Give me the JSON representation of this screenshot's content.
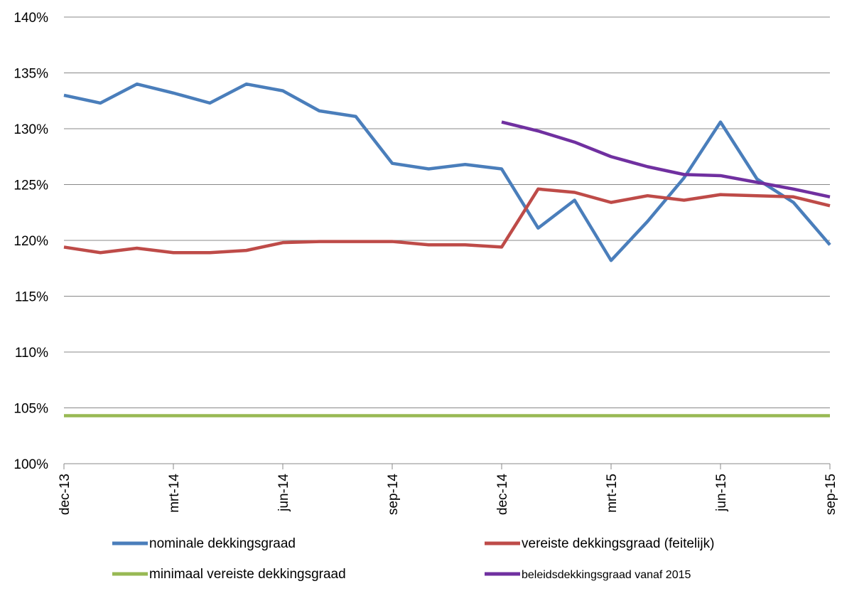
{
  "chart_data": {
    "type": "line",
    "categories": [
      "dec-13",
      null,
      null,
      "mrt-14",
      null,
      null,
      "jun-14",
      null,
      null,
      "sep-14",
      null,
      null,
      "dec-14",
      null,
      null,
      "mrt-15",
      null,
      null,
      "jun-15",
      null,
      null,
      "sep-15"
    ],
    "series": [
      {
        "name": "nominale dekkingsgraad",
        "color": "#4a7ebb",
        "values": [
          133.0,
          132.3,
          134.0,
          133.2,
          132.3,
          134.0,
          133.4,
          131.6,
          131.1,
          126.9,
          126.4,
          126.8,
          126.4,
          121.1,
          123.6,
          118.2,
          121.7,
          125.6,
          130.6,
          125.5,
          123.4,
          119.6
        ]
      },
      {
        "name": "vereiste dekkingsgraad (feitelijk)",
        "color": "#be4b48",
        "values": [
          119.4,
          118.9,
          119.3,
          118.9,
          118.9,
          119.1,
          119.8,
          119.9,
          119.9,
          119.9,
          119.6,
          119.6,
          119.4,
          124.6,
          124.3,
          123.4,
          124.0,
          123.6,
          124.1,
          124.0,
          123.9,
          123.1
        ]
      },
      {
        "name": "minimaal vereiste dekkingsgraad",
        "color": "#98b954",
        "values": [
          104.3,
          104.3,
          104.3,
          104.3,
          104.3,
          104.3,
          104.3,
          104.3,
          104.3,
          104.3,
          104.3,
          104.3,
          104.3,
          104.3,
          104.3,
          104.3,
          104.3,
          104.3,
          104.3,
          104.3,
          104.3,
          104.3
        ]
      },
      {
        "name": "beleidsdekkingsgraad vanaf 2015",
        "color": "#7030a0",
        "values": [
          null,
          null,
          null,
          null,
          null,
          null,
          null,
          null,
          null,
          null,
          null,
          null,
          130.6,
          129.8,
          128.8,
          127.5,
          126.6,
          125.9,
          125.8,
          125.2,
          124.6,
          123.9
        ]
      }
    ],
    "ylim": [
      100,
      140
    ],
    "yticks": [
      {
        "value": 100,
        "label": "100%"
      },
      {
        "value": 105,
        "label": "105%"
      },
      {
        "value": 110,
        "label": "110%"
      },
      {
        "value": 115,
        "label": "115%"
      },
      {
        "value": 120,
        "label": "120%"
      },
      {
        "value": 125,
        "label": "125%"
      },
      {
        "value": 130,
        "label": "130%"
      },
      {
        "value": 135,
        "label": "135%"
      },
      {
        "value": 140,
        "label": "140%"
      }
    ],
    "grid": true
  }
}
